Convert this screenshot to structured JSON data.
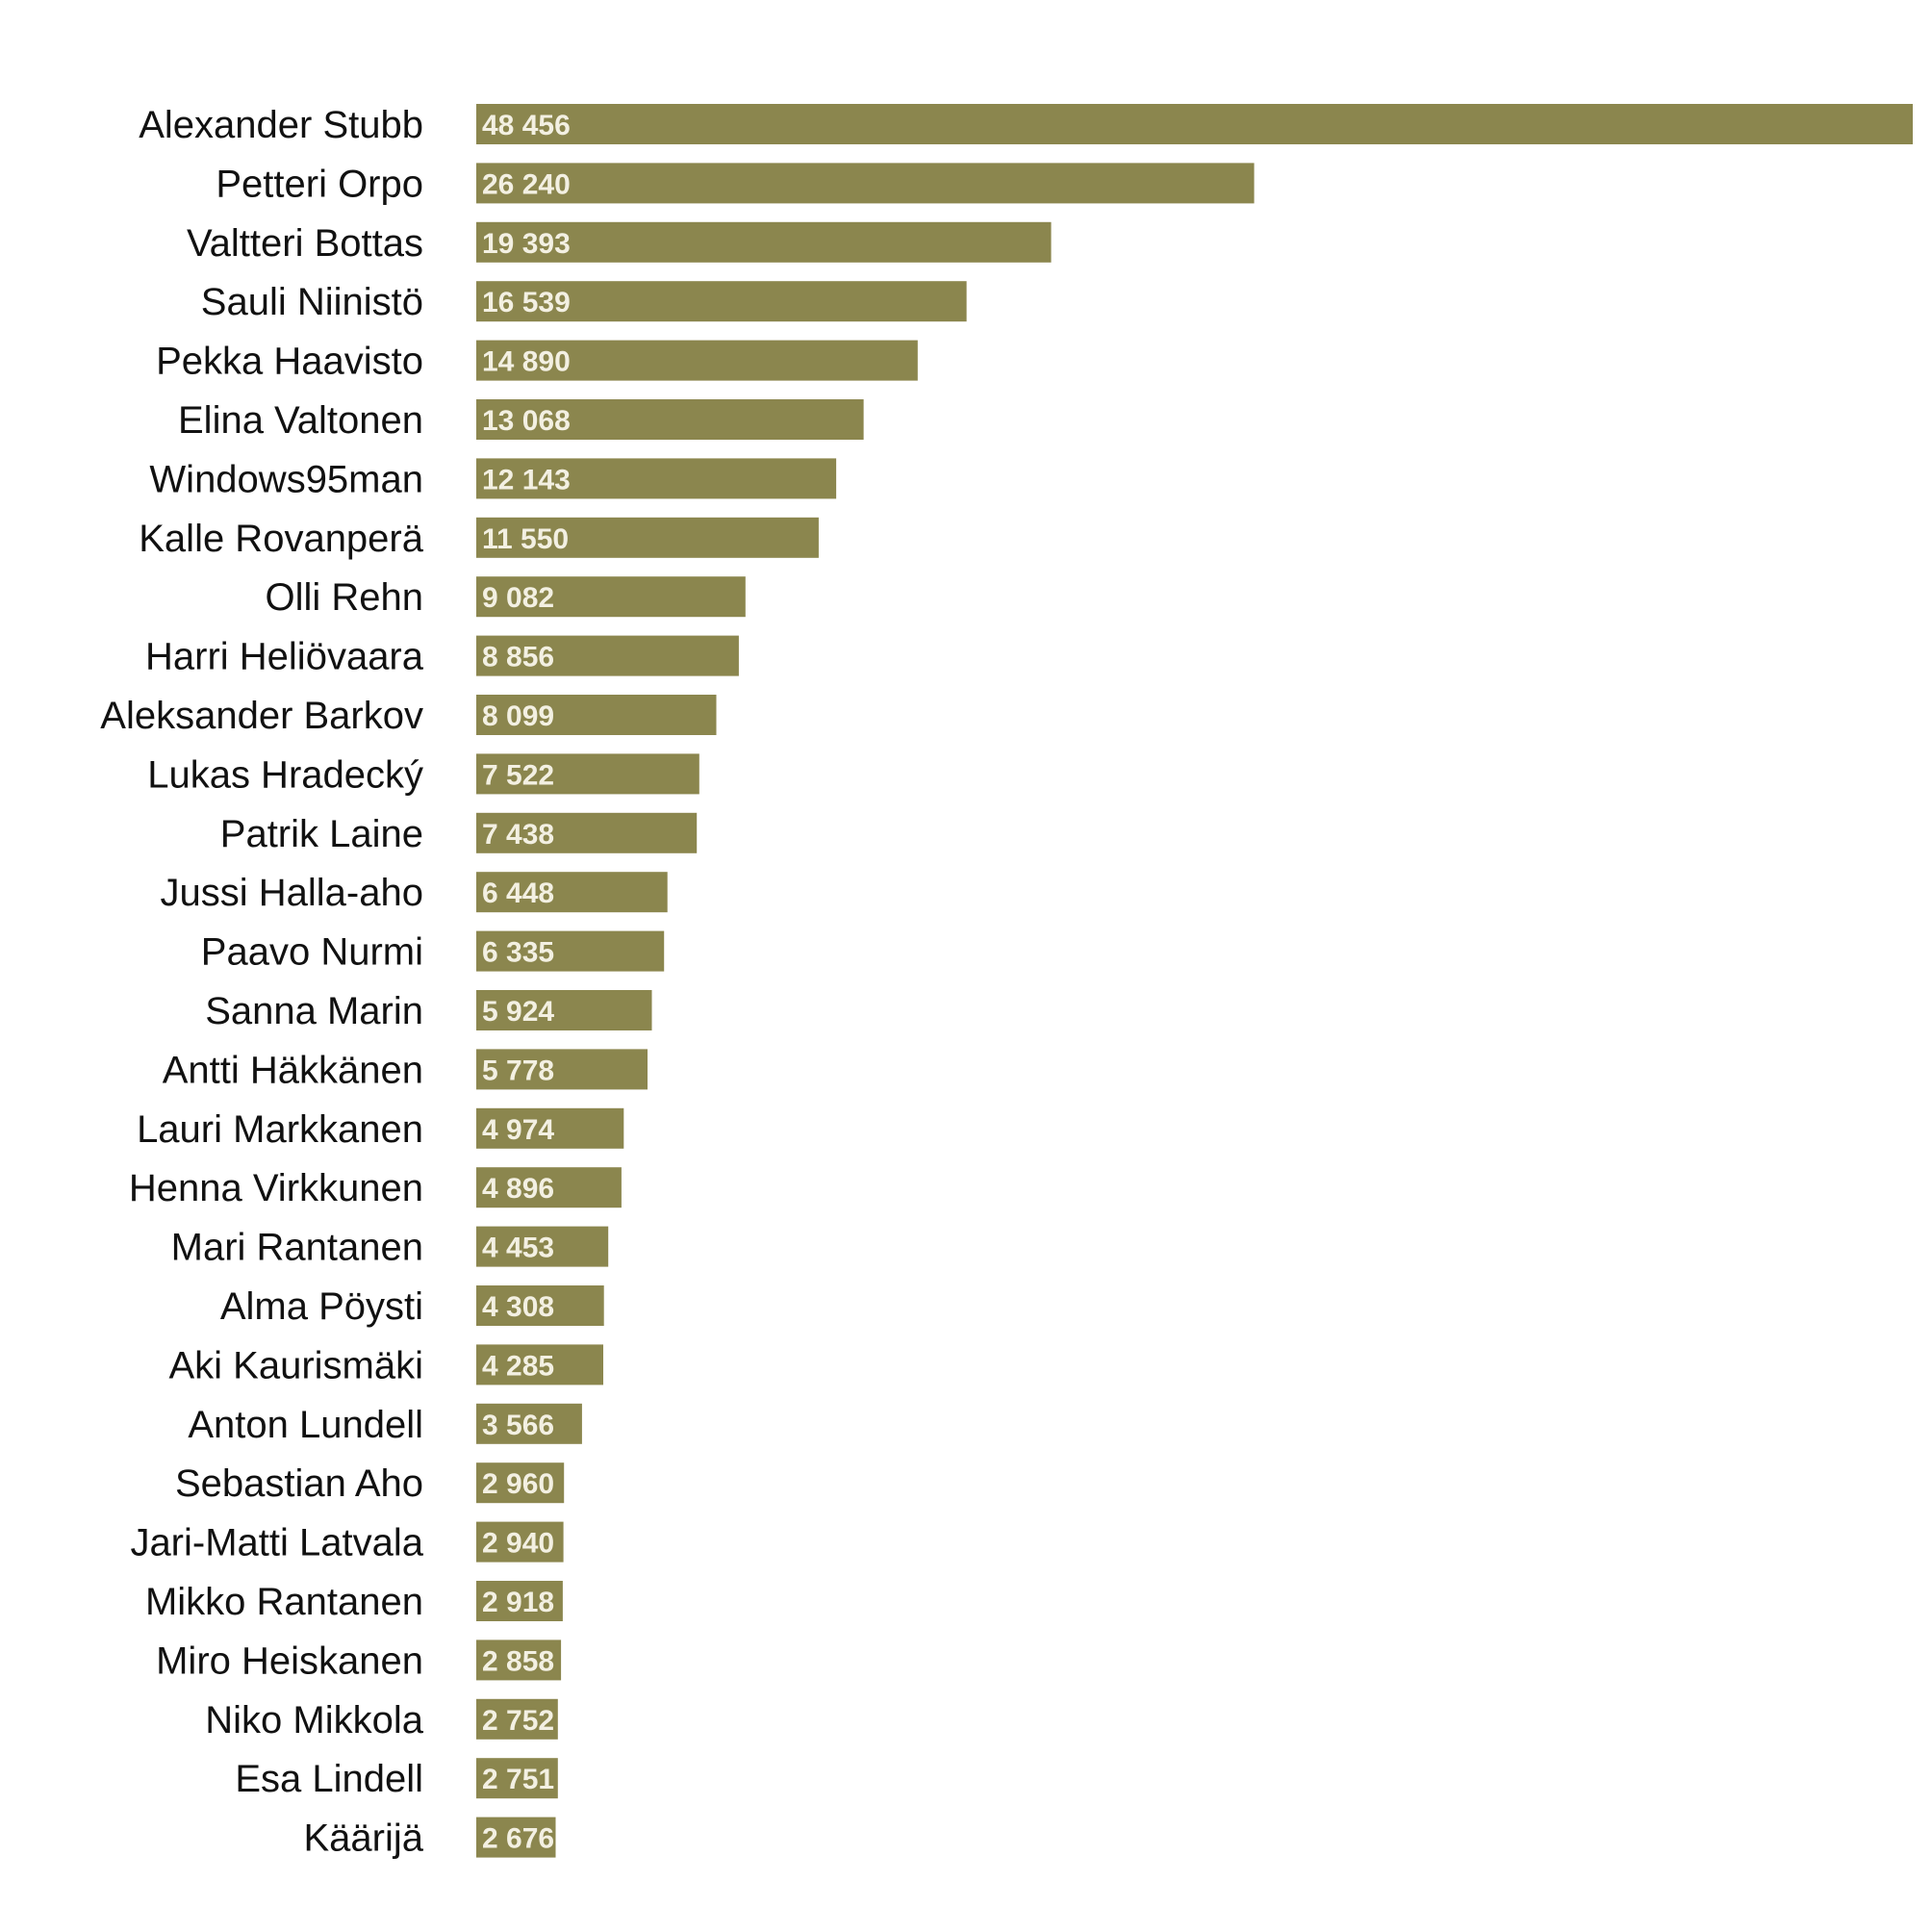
{
  "chart_data": {
    "type": "bar",
    "orientation": "horizontal",
    "categories": [
      "Alexander Stubb",
      "Petteri Orpo",
      "Valtteri Bottas",
      "Sauli Niinistö",
      "Pekka Haavisto",
      "Elina Valtonen",
      "Windows95man",
      "Kalle Rovanperä",
      "Olli Rehn",
      "Harri Heliövaara",
      "Aleksander Barkov",
      "Lukas Hradecký",
      "Patrik Laine",
      "Jussi Halla-aho",
      "Paavo Nurmi",
      "Sanna Marin",
      "Antti Häkkänen",
      "Lauri Markkanen",
      "Henna Virkkunen",
      "Mari Rantanen",
      "Alma Pöysti",
      "Aki Kaurismäki",
      "Anton Lundell",
      "Sebastian Aho",
      "Jari-Matti Latvala",
      "Mikko Rantanen",
      "Miro Heiskanen",
      "Niko Mikkola",
      "Esa Lindell",
      "Käärijä"
    ],
    "values": [
      48456,
      26240,
      19393,
      16539,
      14890,
      13068,
      12143,
      11550,
      9082,
      8856,
      8099,
      7522,
      7438,
      6448,
      6335,
      5924,
      5778,
      4974,
      4896,
      4453,
      4308,
      4285,
      3566,
      2960,
      2940,
      2918,
      2858,
      2752,
      2751,
      2676
    ],
    "value_labels": [
      "48 456",
      "26 240",
      "19 393",
      "16 539",
      "14 890",
      "13 068",
      "12 143",
      "11 550",
      "9 082",
      "8 856",
      "8 099",
      "7 522",
      "7 438",
      "6 448",
      "6 335",
      "5 924",
      "5 778",
      "4 974",
      "4 896",
      "4 453",
      "4 308",
      "4 285",
      "3 566",
      "2 960",
      "2 940",
      "2 918",
      "2 858",
      "2 752",
      "2 751",
      "2 676"
    ],
    "title": "",
    "xlabel": "",
    "ylabel": "",
    "xlim": [
      0,
      48456
    ],
    "grid": false,
    "legend": "none",
    "colors": {
      "bar": "#8B864E",
      "value_text": "#F3F0E2",
      "label_text": "#111111",
      "background": "#FFFFFF"
    }
  }
}
